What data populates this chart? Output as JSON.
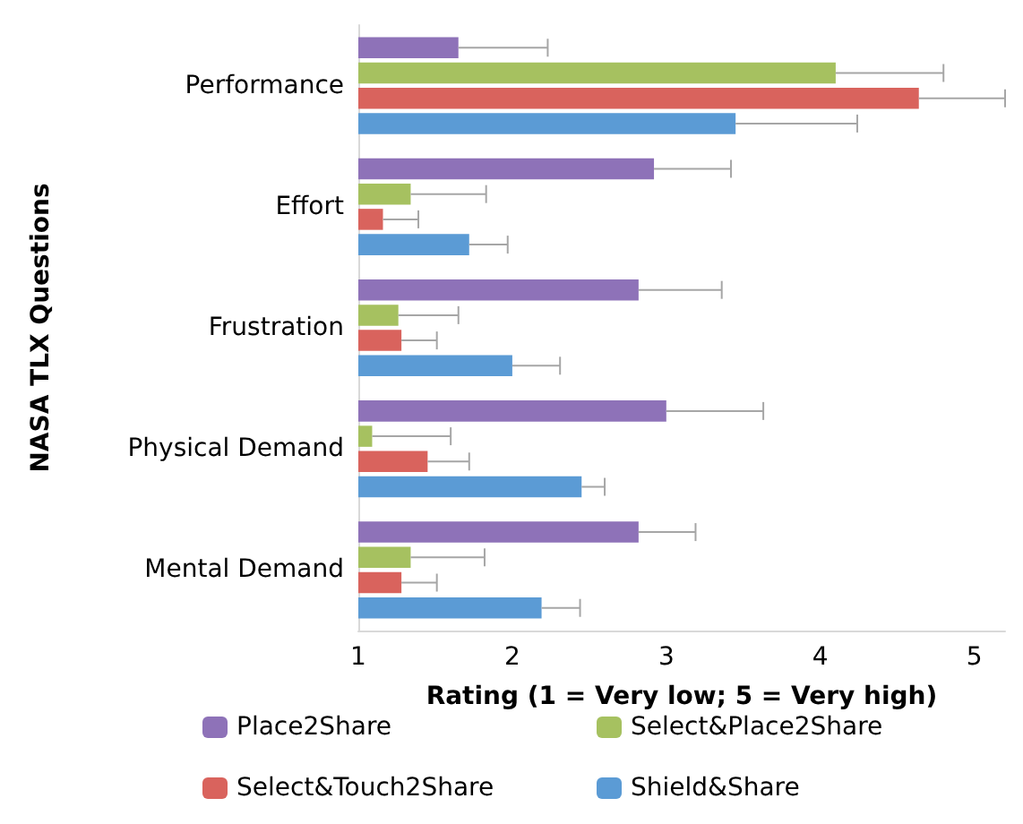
{
  "chart_data": {
    "type": "bar",
    "orientation": "horizontal",
    "xlabel": "Rating (1 = Very low; 5 = Very high)",
    "ylabel": "NASA TLX Questions",
    "categories": [
      "Performance",
      "Effort",
      "Frustration",
      "Physical Demand",
      "Mental Demand"
    ],
    "series": [
      {
        "name": "Place2Share",
        "color": "#8e72b8",
        "values": [
          1.65,
          2.92,
          2.82,
          3.0,
          2.82
        ],
        "errors": [
          [
            1.65,
            2.23
          ],
          [
            2.92,
            3.42
          ],
          [
            2.82,
            3.36
          ],
          [
            3.0,
            3.63
          ],
          [
            2.82,
            3.19
          ]
        ]
      },
      {
        "name": "Select&Place2Share",
        "color": "#a6c160",
        "values": [
          4.1,
          1.34,
          1.26,
          1.09,
          1.34
        ],
        "errors": [
          [
            4.1,
            4.8
          ],
          [
            1.34,
            1.83
          ],
          [
            1.26,
            1.65
          ],
          [
            1.09,
            1.6
          ],
          [
            1.34,
            1.82
          ]
        ]
      },
      {
        "name": "Select&Touch2Share",
        "color": "#d9635d",
        "values": [
          4.64,
          1.16,
          1.28,
          1.45,
          1.28
        ],
        "errors": [
          [
            4.64,
            5.2
          ],
          [
            1.16,
            1.39
          ],
          [
            1.28,
            1.51
          ],
          [
            1.45,
            1.72
          ],
          [
            1.28,
            1.51
          ]
        ]
      },
      {
        "name": "Shield&Share",
        "color": "#5b9bd5",
        "values": [
          3.45,
          1.72,
          2.0,
          2.45,
          2.19
        ],
        "errors": [
          [
            3.45,
            4.24
          ],
          [
            1.72,
            1.97
          ],
          [
            2.0,
            2.31
          ],
          [
            2.45,
            2.6
          ],
          [
            2.19,
            2.44
          ]
        ]
      }
    ],
    "xlim": [
      1,
      5.2
    ],
    "xticks": [
      1,
      2,
      3,
      4,
      5
    ],
    "legend": "bottom"
  }
}
